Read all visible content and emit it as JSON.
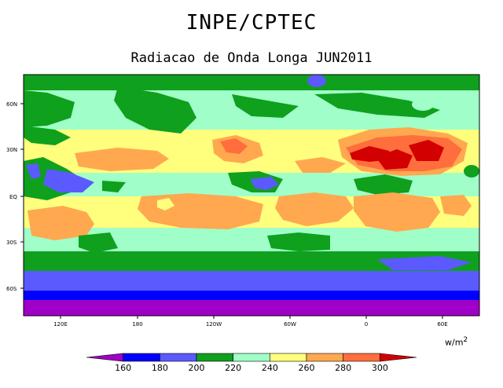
{
  "header": {
    "title": "INPE/CPTEC",
    "subtitle": "Radiacao de Onda Longa JUN2011"
  },
  "map": {
    "lat_ticks": [
      "60N",
      "30N",
      "EQ",
      "30S",
      "60S"
    ],
    "lon_ticks": [
      "120E",
      "180",
      "120W",
      "60W",
      "0",
      "60E"
    ]
  },
  "colorbar": {
    "unit_base": "w/m",
    "unit_exp": "2",
    "labels": [
      "160",
      "180",
      "200",
      "220",
      "240",
      "260",
      "280",
      "300"
    ],
    "colors": [
      "#a000c8",
      "#0000ff",
      "#5a5aff",
      "#0fa01e",
      "#a0ffc8",
      "#ffff7d",
      "#ffa850",
      "#ff6e3c",
      "#d20000"
    ]
  }
}
